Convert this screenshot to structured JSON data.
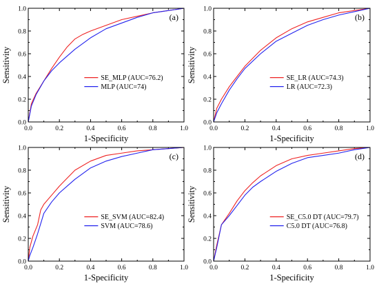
{
  "chart_data": [
    {
      "type": "line",
      "panel_label": "(a)",
      "xlabel": "1-Specificity",
      "ylabel": "Sensitivity",
      "xlim": [
        0,
        1
      ],
      "ylim": [
        0,
        1
      ],
      "xticks": [
        "0.0",
        "0.2",
        "0.4",
        "0.6",
        "0.8",
        "1.0"
      ],
      "yticks": [
        "0.0",
        "0.2",
        "0.4",
        "0.6",
        "0.8",
        "1.0"
      ],
      "legend_position": "bottom-right",
      "series": [
        {
          "name": "SE_MLP (AUC=76.2)",
          "color": "#ee2222",
          "x": [
            0,
            0.02,
            0.05,
            0.1,
            0.15,
            0.2,
            0.25,
            0.3,
            0.35,
            0.4,
            0.5,
            0.6,
            0.7,
            0.8,
            0.9,
            1.0
          ],
          "y": [
            0,
            0.16,
            0.25,
            0.36,
            0.47,
            0.57,
            0.66,
            0.73,
            0.77,
            0.8,
            0.85,
            0.9,
            0.93,
            0.96,
            0.98,
            1.0
          ]
        },
        {
          "name": "MLP (AUC=74)",
          "color": "#2222ee",
          "x": [
            0,
            0.02,
            0.05,
            0.1,
            0.15,
            0.2,
            0.25,
            0.3,
            0.35,
            0.4,
            0.5,
            0.6,
            0.7,
            0.8,
            0.9,
            1.0
          ],
          "y": [
            0,
            0.14,
            0.24,
            0.36,
            0.45,
            0.52,
            0.58,
            0.64,
            0.69,
            0.74,
            0.82,
            0.87,
            0.92,
            0.96,
            0.98,
            1.0
          ]
        }
      ]
    },
    {
      "type": "line",
      "panel_label": "(b)",
      "xlabel": "1-Specificity",
      "ylabel": "Sensitivity",
      "xlim": [
        0,
        1
      ],
      "ylim": [
        0,
        1
      ],
      "xticks": [
        "0.0",
        "0.2",
        "0.4",
        "0.6",
        "0.8",
        "1.0"
      ],
      "yticks": [
        "0.0",
        "0.2",
        "0.4",
        "0.6",
        "0.8",
        "1.0"
      ],
      "legend_position": "bottom-right",
      "series": [
        {
          "name": "SE_LR (AUC=74.3)",
          "color": "#ee2222",
          "x": [
            0,
            0.02,
            0.05,
            0.1,
            0.15,
            0.2,
            0.3,
            0.4,
            0.5,
            0.6,
            0.7,
            0.8,
            0.9,
            1.0
          ],
          "y": [
            0,
            0.12,
            0.2,
            0.31,
            0.4,
            0.49,
            0.63,
            0.74,
            0.82,
            0.88,
            0.92,
            0.96,
            0.98,
            1.0
          ]
        },
        {
          "name": "LR (AUC=72.3)",
          "color": "#2222ee",
          "x": [
            0,
            0.02,
            0.05,
            0.1,
            0.15,
            0.2,
            0.3,
            0.4,
            0.5,
            0.6,
            0.7,
            0.8,
            0.9,
            1.0
          ],
          "y": [
            0,
            0.08,
            0.16,
            0.28,
            0.38,
            0.47,
            0.6,
            0.71,
            0.78,
            0.85,
            0.9,
            0.94,
            0.97,
            1.0
          ]
        }
      ]
    },
    {
      "type": "line",
      "panel_label": "(c)",
      "xlabel": "1-Specificity",
      "ylabel": "Sensitivity",
      "xlim": [
        0,
        1
      ],
      "ylim": [
        0,
        1
      ],
      "xticks": [
        "0.0",
        "0.2",
        "0.4",
        "0.6",
        "0.8",
        "1.0"
      ],
      "yticks": [
        "0.0",
        "0.2",
        "0.4",
        "0.6",
        "0.8",
        "1.0"
      ],
      "legend_position": "bottom-right",
      "series": [
        {
          "name": "SE_SVM (AUC=82.4)",
          "color": "#ee2222",
          "x": [
            0,
            0.01,
            0.03,
            0.06,
            0.08,
            0.1,
            0.15,
            0.2,
            0.25,
            0.3,
            0.4,
            0.5,
            0.6,
            0.7,
            0.8,
            0.9,
            1.0
          ],
          "y": [
            0,
            0.12,
            0.22,
            0.32,
            0.45,
            0.5,
            0.58,
            0.66,
            0.73,
            0.8,
            0.88,
            0.93,
            0.95,
            0.97,
            0.98,
            0.99,
            1.0
          ]
        },
        {
          "name": "SVM (AUC=78.6)",
          "color": "#2222ee",
          "x": [
            0,
            0.01,
            0.03,
            0.06,
            0.08,
            0.1,
            0.15,
            0.2,
            0.25,
            0.3,
            0.4,
            0.5,
            0.6,
            0.7,
            0.8,
            0.9,
            1.0
          ],
          "y": [
            0,
            0.05,
            0.12,
            0.24,
            0.33,
            0.42,
            0.52,
            0.6,
            0.66,
            0.72,
            0.82,
            0.88,
            0.92,
            0.95,
            0.98,
            0.99,
            1.0
          ]
        }
      ]
    },
    {
      "type": "line",
      "panel_label": "(d)",
      "xlabel": "1-Specificity",
      "ylabel": "Sensitivity",
      "xlim": [
        0,
        1
      ],
      "ylim": [
        0,
        1
      ],
      "xticks": [
        "0.0",
        "0.2",
        "0.4",
        "0.6",
        "0.8",
        "1.0"
      ],
      "yticks": [
        "0.0",
        "0.2",
        "0.4",
        "0.6",
        "0.8",
        "1.0"
      ],
      "legend_position": "bottom-right",
      "series": [
        {
          "name": "SE_C5.0 DT (AUC=79.7)",
          "color": "#ee2222",
          "x": [
            0,
            0.02,
            0.05,
            0.1,
            0.15,
            0.2,
            0.25,
            0.3,
            0.4,
            0.5,
            0.6,
            0.7,
            0.8,
            0.9,
            1.0
          ],
          "y": [
            0,
            0.14,
            0.32,
            0.42,
            0.53,
            0.62,
            0.69,
            0.75,
            0.84,
            0.9,
            0.93,
            0.95,
            0.97,
            0.99,
            1.0
          ]
        },
        {
          "name": "C5.0 DT (AUC=76.8)",
          "color": "#2222ee",
          "x": [
            0,
            0.02,
            0.05,
            0.1,
            0.15,
            0.2,
            0.25,
            0.3,
            0.4,
            0.5,
            0.6,
            0.7,
            0.8,
            0.9,
            1.0
          ],
          "y": [
            0,
            0.12,
            0.32,
            0.4,
            0.49,
            0.58,
            0.65,
            0.7,
            0.79,
            0.86,
            0.91,
            0.93,
            0.95,
            0.98,
            1.0
          ]
        }
      ]
    }
  ]
}
